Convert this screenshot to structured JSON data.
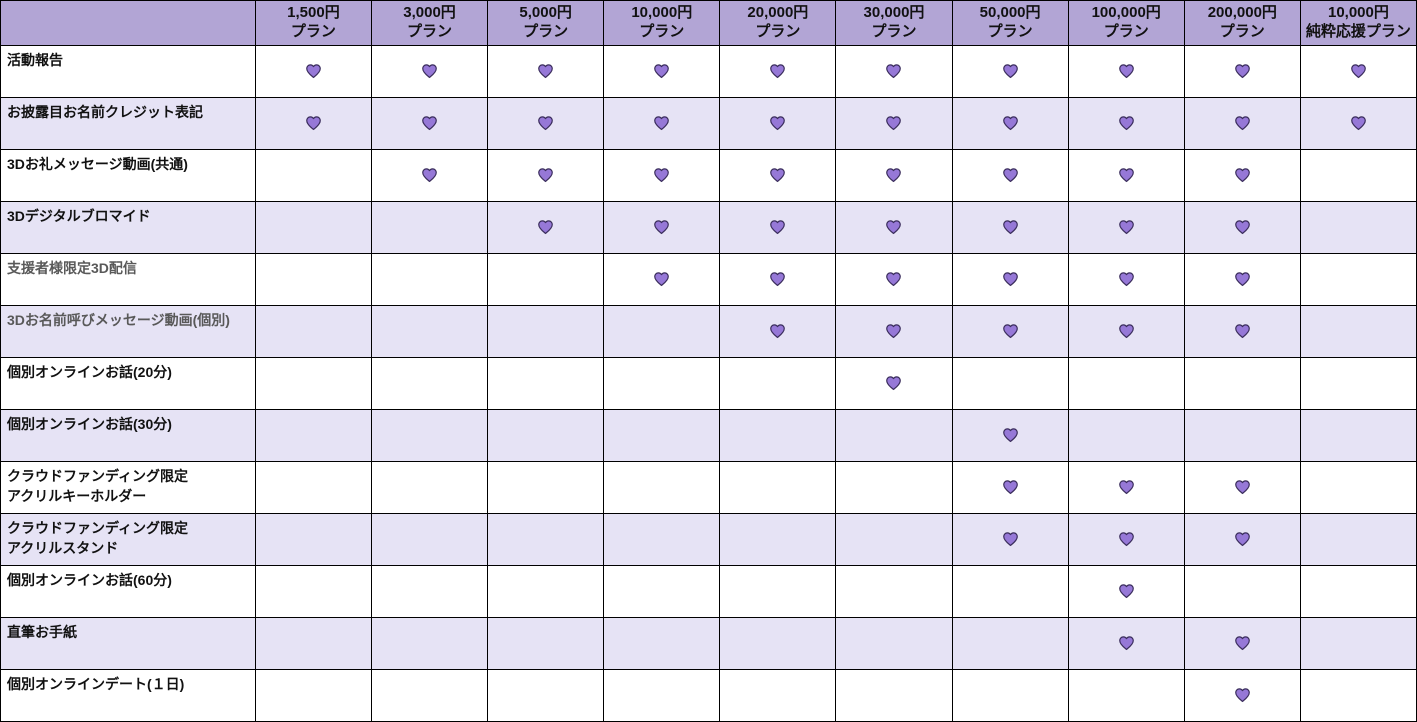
{
  "table": {
    "corner_label": "",
    "columns": [
      {
        "line1": "1,500円",
        "line2": "プラン"
      },
      {
        "line1": "3,000円",
        "line2": "プラン"
      },
      {
        "line1": "5,000円",
        "line2": "プラン"
      },
      {
        "line1": "10,000円",
        "line2": "プラン"
      },
      {
        "line1": "20,000円",
        "line2": "プラン"
      },
      {
        "line1": "30,000円",
        "line2": "プラン"
      },
      {
        "line1": "50,000円",
        "line2": "プラン"
      },
      {
        "line1": "100,000円",
        "line2": "プラン"
      },
      {
        "line1": "200,000円",
        "line2": "プラン"
      },
      {
        "line1": "10,000円",
        "line2": "純粋応援プラン"
      }
    ],
    "rows": [
      {
        "label": "活動報告",
        "muted": false,
        "hearts": [
          1,
          1,
          1,
          1,
          1,
          1,
          1,
          1,
          1,
          1
        ]
      },
      {
        "label": "お披露目お名前クレジット表記",
        "muted": false,
        "hearts": [
          1,
          1,
          1,
          1,
          1,
          1,
          1,
          1,
          1,
          1
        ]
      },
      {
        "label": "3Dお礼メッセージ動画(共通)",
        "muted": false,
        "hearts": [
          0,
          1,
          1,
          1,
          1,
          1,
          1,
          1,
          1,
          0
        ]
      },
      {
        "label": "3Dデジタルブロマイド",
        "muted": false,
        "hearts": [
          0,
          0,
          1,
          1,
          1,
          1,
          1,
          1,
          1,
          0
        ]
      },
      {
        "label": "支援者様限定3D配信",
        "muted": true,
        "hearts": [
          0,
          0,
          0,
          1,
          1,
          1,
          1,
          1,
          1,
          0
        ]
      },
      {
        "label": "3Dお名前呼びメッセージ動画(個別)",
        "muted": true,
        "hearts": [
          0,
          0,
          0,
          0,
          1,
          1,
          1,
          1,
          1,
          0
        ]
      },
      {
        "label": "個別オンラインお話(20分)",
        "muted": false,
        "hearts": [
          0,
          0,
          0,
          0,
          0,
          1,
          0,
          0,
          0,
          0
        ]
      },
      {
        "label": "個別オンラインお話(30分)",
        "muted": false,
        "hearts": [
          0,
          0,
          0,
          0,
          0,
          0,
          1,
          0,
          0,
          0
        ]
      },
      {
        "label": "クラウドファンディング限定\nアクリルキーホルダー",
        "muted": false,
        "hearts": [
          0,
          0,
          0,
          0,
          0,
          0,
          1,
          1,
          1,
          0
        ]
      },
      {
        "label": "クラウドファンディング限定\nアクリルスタンド",
        "muted": false,
        "hearts": [
          0,
          0,
          0,
          0,
          0,
          0,
          1,
          1,
          1,
          0
        ]
      },
      {
        "label": "個別オンラインお話(60分)",
        "muted": false,
        "hearts": [
          0,
          0,
          0,
          0,
          0,
          0,
          0,
          1,
          0,
          0
        ]
      },
      {
        "label": "直筆お手紙",
        "muted": false,
        "hearts": [
          0,
          0,
          0,
          0,
          0,
          0,
          0,
          1,
          1,
          0
        ]
      },
      {
        "label": "個別オンラインデート(１日)",
        "muted": false,
        "hearts": [
          0,
          0,
          0,
          0,
          0,
          0,
          0,
          0,
          1,
          0
        ]
      }
    ],
    "heart_icon": "purple-heart",
    "colors": {
      "header_bg": "#b2a5d5",
      "row_bg": "#ffffff",
      "row_alt_bg": "#e6e3f5",
      "border": "#000000",
      "text": "#111111",
      "muted_text": "#595959",
      "heart_fill": "#9678d7",
      "heart_stroke": "#3a2d5c"
    }
  }
}
